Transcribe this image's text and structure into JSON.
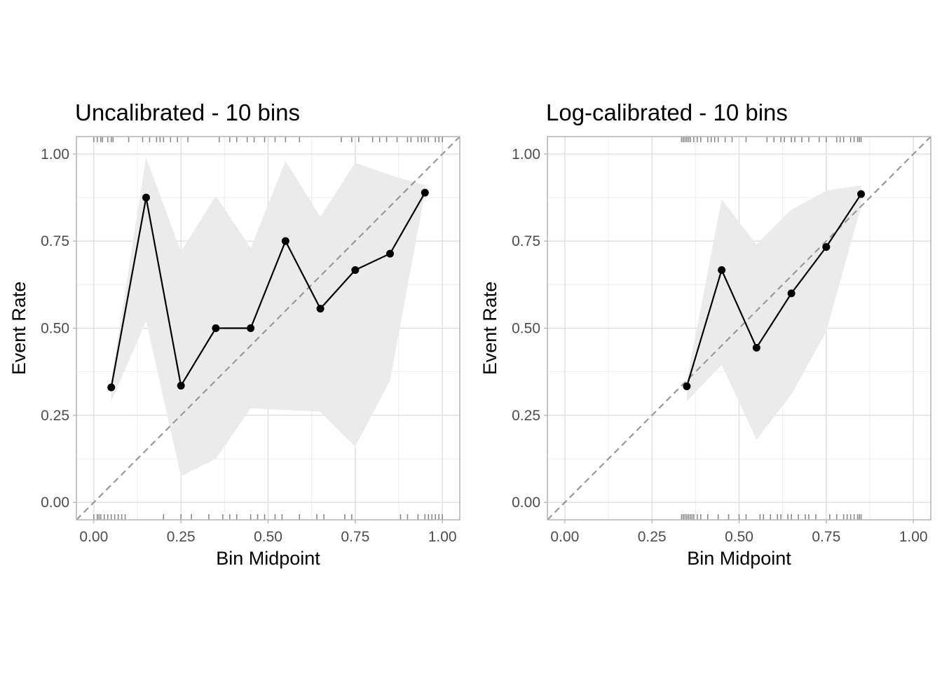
{
  "chart_data": [
    {
      "type": "line",
      "title": "Uncalibrated - 10 bins",
      "xlabel": "Bin Midpoint",
      "ylabel": "Event Rate",
      "xlim": [
        -0.05,
        1.05
      ],
      "ylim": [
        -0.05,
        1.05
      ],
      "xticks": [
        "0.00",
        "0.25",
        "0.50",
        "0.75",
        "1.00"
      ],
      "yticks": [
        "0.00",
        "0.25",
        "0.50",
        "0.75",
        "1.00"
      ],
      "grid": true,
      "reference_line": "diagonal y = x (dashed)",
      "series": [
        {
          "x": [
            0.05,
            0.15,
            0.25,
            0.35,
            0.45,
            0.55,
            0.65,
            0.75,
            0.85,
            0.95
          ],
          "y": [
            0.33,
            0.875,
            0.335,
            0.5,
            0.5,
            0.75,
            0.556,
            0.667,
            0.714,
            0.889
          ],
          "lower": [
            0.29,
            0.52,
            0.075,
            0.125,
            0.27,
            0.265,
            0.26,
            0.16,
            0.35,
            0.89
          ],
          "upper": [
            0.35,
            0.99,
            0.72,
            0.88,
            0.73,
            0.98,
            0.82,
            0.975,
            0.94,
            0.91
          ]
        }
      ],
      "rug_top": [
        0.0,
        0.01,
        0.02,
        0.025,
        0.04,
        0.05,
        0.055,
        0.1,
        0.14,
        0.16,
        0.18,
        0.19,
        0.2,
        0.22,
        0.24,
        0.27,
        0.36,
        0.39,
        0.41,
        0.44,
        0.46,
        0.49,
        0.52,
        0.55,
        0.59,
        0.71,
        0.74,
        0.76,
        0.8,
        0.82,
        0.84,
        0.87,
        0.9,
        0.91,
        0.93,
        0.94,
        0.95,
        0.96,
        0.98,
        0.99,
        1.0
      ],
      "rug_bottom": [
        0.0,
        0.01,
        0.015,
        0.02,
        0.03,
        0.04,
        0.05,
        0.06,
        0.07,
        0.08,
        0.09,
        0.2,
        0.25,
        0.28,
        0.33,
        0.37,
        0.39,
        0.41,
        0.45,
        0.47,
        0.49,
        0.52,
        0.54,
        0.59,
        0.64,
        0.66,
        0.72,
        0.74,
        0.88,
        0.9,
        0.93,
        0.95,
        0.96,
        0.97,
        0.98,
        0.99,
        1.0
      ]
    },
    {
      "type": "line",
      "title": "Log-calibrated - 10 bins",
      "xlabel": "Bin Midpoint",
      "ylabel": "Event Rate",
      "xlim": [
        -0.05,
        1.05
      ],
      "ylim": [
        -0.05,
        1.05
      ],
      "xticks": [
        "0.00",
        "0.25",
        "0.50",
        "0.75",
        "1.00"
      ],
      "yticks": [
        "0.00",
        "0.25",
        "0.50",
        "0.75",
        "1.00"
      ],
      "grid": true,
      "reference_line": "diagonal y = x (dashed)",
      "series": [
        {
          "x": [
            0.35,
            0.45,
            0.55,
            0.65,
            0.75,
            0.85
          ],
          "y": [
            0.333,
            0.667,
            0.444,
            0.6,
            0.733,
            0.885
          ],
          "lower": [
            0.29,
            0.395,
            0.18,
            0.31,
            0.49,
            0.85
          ],
          "upper": [
            0.35,
            0.87,
            0.74,
            0.84,
            0.895,
            0.91
          ]
        }
      ],
      "rug_top": [
        0.335,
        0.34,
        0.345,
        0.35,
        0.355,
        0.36,
        0.37,
        0.38,
        0.39,
        0.41,
        0.42,
        0.43,
        0.44,
        0.46,
        0.48,
        0.52,
        0.58,
        0.6,
        0.62,
        0.63,
        0.65,
        0.66,
        0.68,
        0.7,
        0.73,
        0.75,
        0.78,
        0.79,
        0.8,
        0.82,
        0.83,
        0.84,
        0.845,
        0.85
      ],
      "rug_bottom": [
        0.335,
        0.34,
        0.345,
        0.35,
        0.355,
        0.36,
        0.365,
        0.37,
        0.38,
        0.39,
        0.41,
        0.44,
        0.47,
        0.5,
        0.52,
        0.56,
        0.57,
        0.59,
        0.61,
        0.62,
        0.64,
        0.65,
        0.67,
        0.69,
        0.7,
        0.72,
        0.76,
        0.78,
        0.8,
        0.81,
        0.82,
        0.83,
        0.84,
        0.845,
        0.85
      ]
    }
  ],
  "colors": {
    "line": "#000000",
    "ribbon": "#ebebeb",
    "grid": "#dcdcdc",
    "grid_minor": "#ececec",
    "panel_border": "#b3b3b3",
    "reference_line": "#999999",
    "rug": "#8a8a8a",
    "axis_text": "#4d4d4d",
    "title": "#000000"
  }
}
